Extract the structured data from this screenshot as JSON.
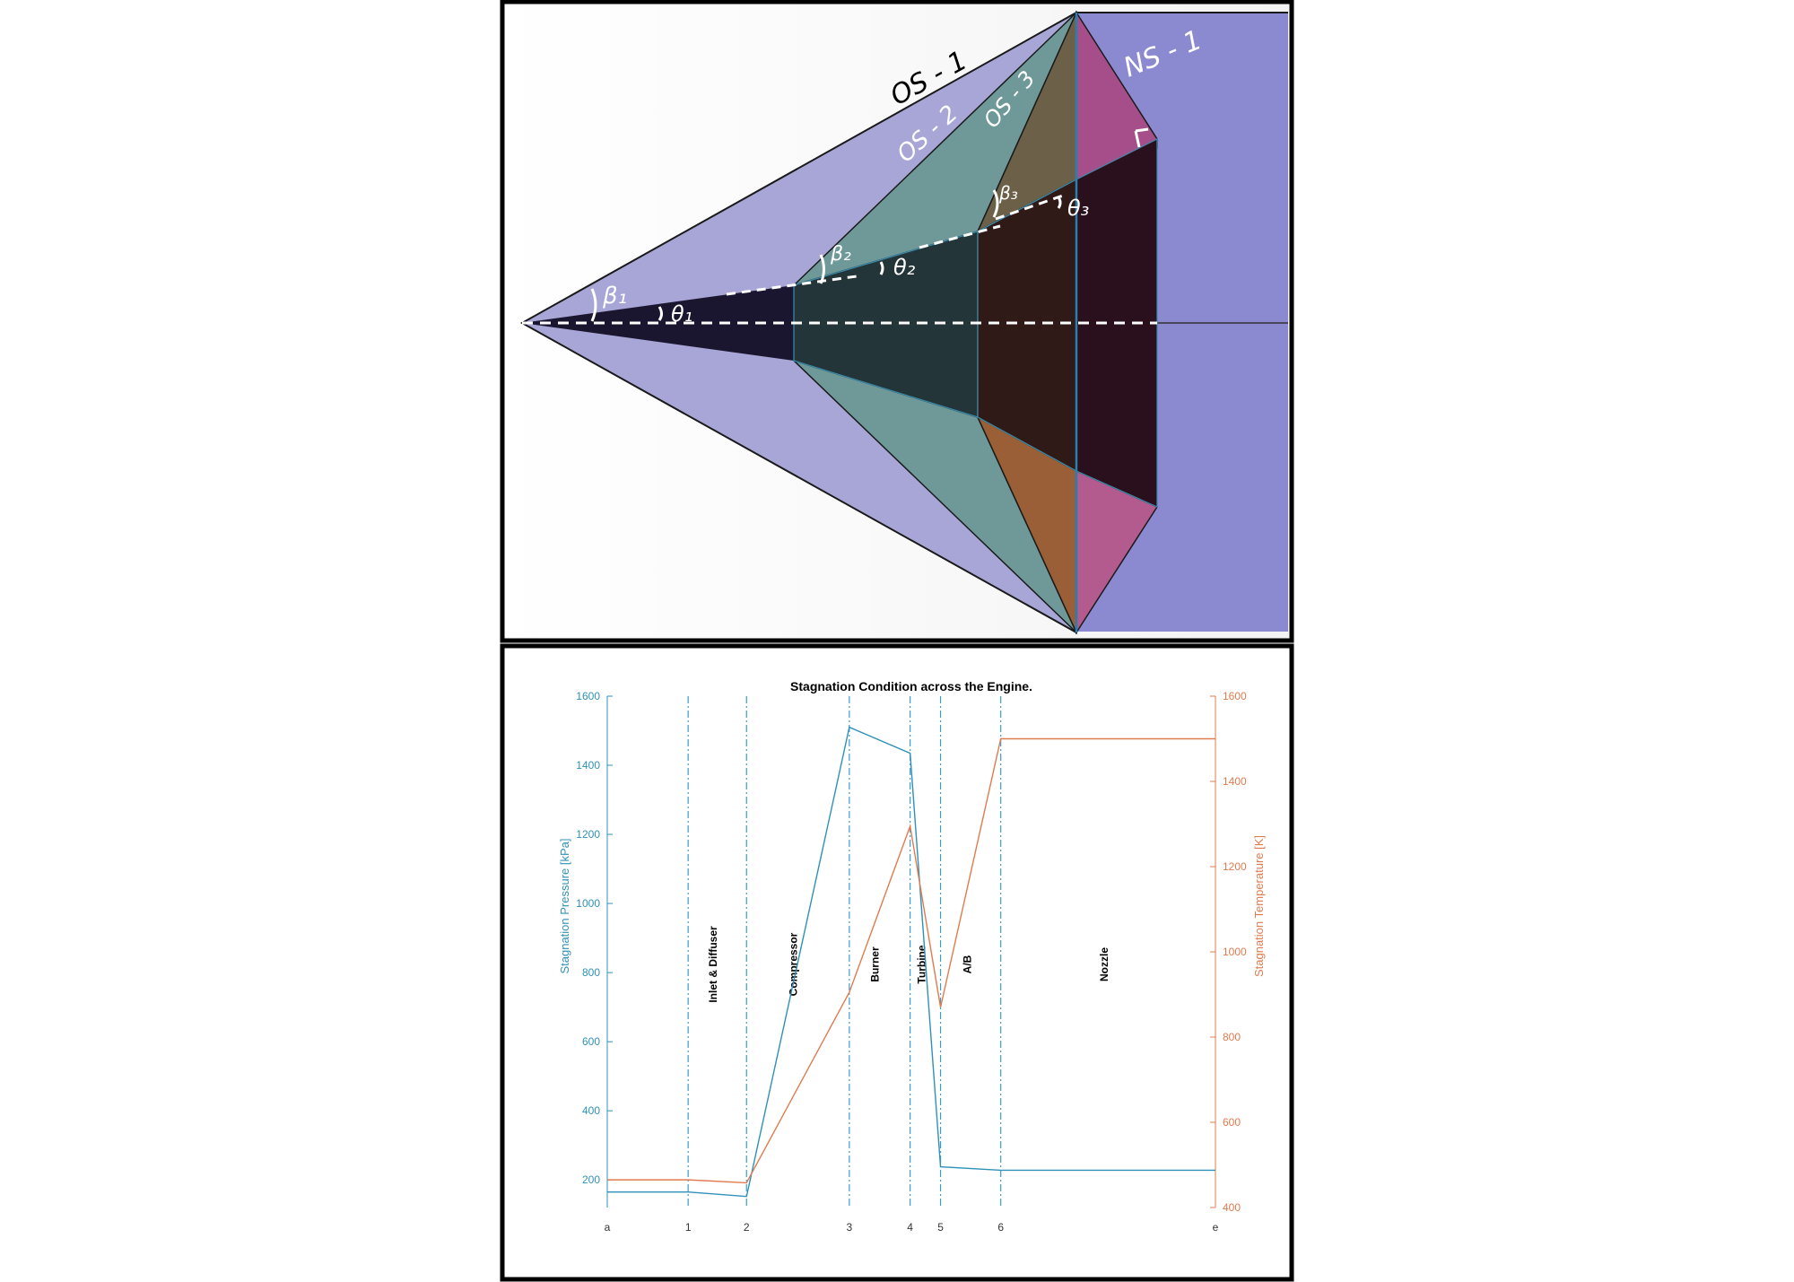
{
  "diagram": {
    "hand_labels": {
      "os1": "OS - 1",
      "os2": "OS - 2",
      "os3": "OS - 3",
      "ns1": "NS - 1",
      "beta1": "β₁",
      "theta1": "θ₁",
      "beta2": "β₂",
      "theta2": "θ₂",
      "beta3": "β₃",
      "theta3": "θ₃"
    },
    "colors": {
      "background": "#ffffff",
      "frame": "#000000",
      "shock_region": "#a7a6d6",
      "ramp1": "#1b1630",
      "ramp2": "#233538",
      "ramp3": "#2a0f1c",
      "os2_face": "#6f9898",
      "os3_face": "#8a5a3a",
      "ns_face": "#a54e8a",
      "duct": "#8b89cf",
      "annotation": "#ffffff"
    }
  },
  "chart_data": {
    "type": "line",
    "title": "Stagnation Condition across the Engine.",
    "x_categories": [
      "a",
      "1",
      "2",
      "3",
      "4",
      "5",
      "6",
      "e"
    ],
    "x_positions": [
      0,
      1.33,
      2.29,
      3.98,
      4.98,
      5.48,
      6.47,
      10
    ],
    "y_left": {
      "label": "Stagnation Pressure [kPa]",
      "lim": [
        120,
        1600
      ],
      "ticks": [
        200,
        400,
        600,
        800,
        1000,
        1200,
        1400,
        1600
      ]
    },
    "y_right": {
      "label": "Stagnation Temperature [K]",
      "lim": [
        400,
        1600
      ],
      "ticks": [
        400,
        600,
        800,
        1000,
        1200,
        1400,
        1600
      ]
    },
    "stations_dashed": [
      "1",
      "2",
      "3",
      "4",
      "5",
      "6"
    ],
    "region_labels": [
      {
        "text": "Inlet & Diffuser",
        "x": 1.8
      },
      {
        "text": "Compressor",
        "x": 3.12
      },
      {
        "text": "Burner",
        "x": 4.46
      },
      {
        "text": "Turbine",
        "x": 5.23
      },
      {
        "text": "A/B",
        "x": 5.98
      },
      {
        "text": "Nozzle",
        "x": 8.23
      }
    ],
    "series": [
      {
        "name": "Stagnation Pressure [kPa]",
        "axis": "left",
        "color": "#2f91b7",
        "values": [
          165,
          165,
          152,
          1510,
          1435,
          238,
          228,
          228
        ]
      },
      {
        "name": "Stagnation Temperature [K]",
        "axis": "right",
        "color": "#e07b4f",
        "values": [
          465,
          465,
          458,
          905,
          1295,
          870,
          1500,
          1500
        ]
      }
    ],
    "grid": false
  }
}
